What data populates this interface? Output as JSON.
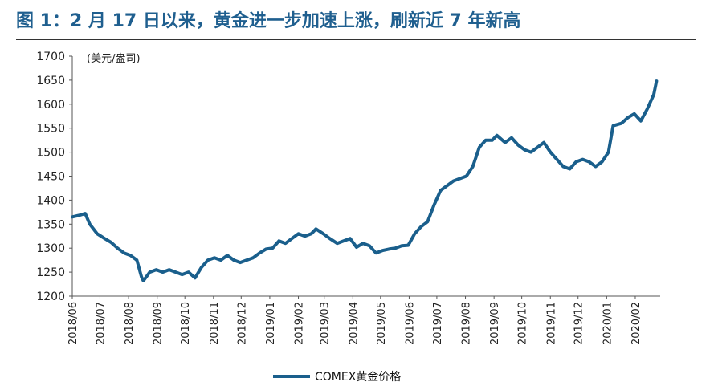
{
  "figure": {
    "title": "图 1：2 月 17 日以来，黄金进一步加速上涨，刷新近 7 年新高"
  },
  "colors": {
    "series": "#1a5f8c",
    "title": "#1f5f8f",
    "rule": "#333333"
  },
  "chart_data": {
    "type": "line",
    "title": "",
    "ylabel": "",
    "unit_label": "(美元/盎司)",
    "ylim": [
      1200,
      1700
    ],
    "yticks": [
      1200,
      1250,
      1300,
      1350,
      1400,
      1450,
      1500,
      1550,
      1600,
      1650,
      1700
    ],
    "xlim": [
      "2018-06-01",
      "2020-02-28"
    ],
    "xticks": [
      "2018/06",
      "2018/07",
      "2018/08",
      "2018/09",
      "2018/10",
      "2018/11",
      "2018/12",
      "2019/01",
      "2019/02",
      "2019/03",
      "2019/04",
      "2019/05",
      "2019/06",
      "2019/07",
      "2019/08",
      "2019/09",
      "2019/10",
      "2019/11",
      "2019/12",
      "2020/01",
      "2020/02"
    ],
    "grid": false,
    "legend": "bottom",
    "series": [
      {
        "name": "COMEX黄金价格",
        "x": [
          "2018-06-01",
          "2018-06-08",
          "2018-06-15",
          "2018-06-20",
          "2018-06-28",
          "2018-07-06",
          "2018-07-13",
          "2018-07-20",
          "2018-07-27",
          "2018-08-03",
          "2018-08-10",
          "2018-08-15",
          "2018-08-17",
          "2018-08-24",
          "2018-08-31",
          "2018-09-07",
          "2018-09-14",
          "2018-09-21",
          "2018-09-28",
          "2018-10-05",
          "2018-10-12",
          "2018-10-19",
          "2018-10-26",
          "2018-11-02",
          "2018-11-09",
          "2018-11-16",
          "2018-11-23",
          "2018-11-30",
          "2018-12-07",
          "2018-12-14",
          "2018-12-21",
          "2018-12-28",
          "2019-01-04",
          "2019-01-11",
          "2019-01-18",
          "2019-01-25",
          "2019-02-01",
          "2019-02-08",
          "2019-02-15",
          "2019-02-20",
          "2019-02-28",
          "2019-03-07",
          "2019-03-15",
          "2019-03-22",
          "2019-03-29",
          "2019-04-05",
          "2019-04-12",
          "2019-04-19",
          "2019-04-26",
          "2019-05-03",
          "2019-05-10",
          "2019-05-17",
          "2019-05-24",
          "2019-05-31",
          "2019-06-07",
          "2019-06-14",
          "2019-06-21",
          "2019-06-28",
          "2019-07-05",
          "2019-07-12",
          "2019-07-19",
          "2019-07-26",
          "2019-08-02",
          "2019-08-09",
          "2019-08-16",
          "2019-08-23",
          "2019-08-30",
          "2019-09-04",
          "2019-09-13",
          "2019-09-20",
          "2019-09-27",
          "2019-10-04",
          "2019-10-11",
          "2019-10-18",
          "2019-10-25",
          "2019-11-01",
          "2019-11-08",
          "2019-11-15",
          "2019-11-22",
          "2019-11-29",
          "2019-12-06",
          "2019-12-13",
          "2019-12-20",
          "2019-12-27",
          "2020-01-03",
          "2020-01-08",
          "2020-01-17",
          "2020-01-24",
          "2020-01-31",
          "2020-02-07",
          "2020-02-14",
          "2020-02-21",
          "2020-02-24"
        ],
        "y": [
          1365,
          1368,
          1372,
          1350,
          1330,
          1320,
          1312,
          1300,
          1290,
          1285,
          1275,
          1240,
          1232,
          1250,
          1255,
          1250,
          1255,
          1250,
          1245,
          1250,
          1238,
          1260,
          1275,
          1280,
          1275,
          1285,
          1275,
          1270,
          1275,
          1280,
          1290,
          1298,
          1300,
          1315,
          1310,
          1320,
          1330,
          1325,
          1330,
          1340,
          1330,
          1320,
          1310,
          1315,
          1320,
          1302,
          1310,
          1305,
          1290,
          1295,
          1298,
          1300,
          1305,
          1306,
          1330,
          1345,
          1355,
          1390,
          1420,
          1430,
          1440,
          1445,
          1450,
          1470,
          1510,
          1525,
          1525,
          1535,
          1520,
          1530,
          1515,
          1505,
          1500,
          1510,
          1520,
          1500,
          1485,
          1470,
          1465,
          1480,
          1485,
          1480,
          1470,
          1480,
          1500,
          1555,
          1560,
          1572,
          1580,
          1565,
          1590,
          1620,
          1648
        ]
      }
    ]
  }
}
